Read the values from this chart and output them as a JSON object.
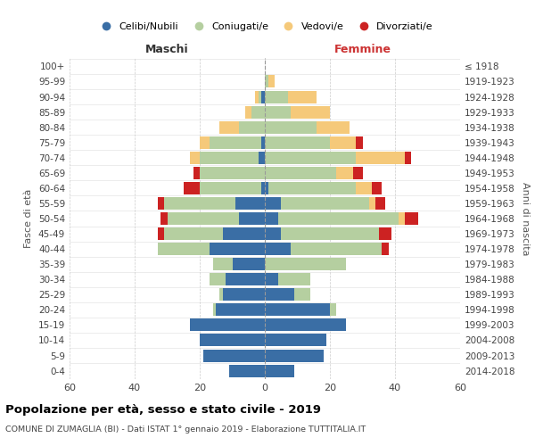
{
  "age_groups": [
    "0-4",
    "5-9",
    "10-14",
    "15-19",
    "20-24",
    "25-29",
    "30-34",
    "35-39",
    "40-44",
    "45-49",
    "50-54",
    "55-59",
    "60-64",
    "65-69",
    "70-74",
    "75-79",
    "80-84",
    "85-89",
    "90-94",
    "95-99",
    "100+"
  ],
  "birth_years": [
    "2014-2018",
    "2009-2013",
    "2004-2008",
    "1999-2003",
    "1994-1998",
    "1989-1993",
    "1984-1988",
    "1979-1983",
    "1974-1978",
    "1969-1973",
    "1964-1968",
    "1959-1963",
    "1954-1958",
    "1949-1953",
    "1944-1948",
    "1939-1943",
    "1934-1938",
    "1929-1933",
    "1924-1928",
    "1919-1923",
    "≤ 1918"
  ],
  "males": {
    "celibi": [
      11,
      19,
      20,
      23,
      15,
      13,
      12,
      10,
      17,
      13,
      8,
      9,
      1,
      0,
      2,
      1,
      0,
      0,
      1,
      0,
      0
    ],
    "coniugati": [
      0,
      0,
      0,
      0,
      1,
      1,
      5,
      6,
      16,
      18,
      22,
      22,
      19,
      20,
      18,
      16,
      8,
      4,
      1,
      0,
      0
    ],
    "vedovi": [
      0,
      0,
      0,
      0,
      0,
      0,
      0,
      0,
      0,
      0,
      0,
      0,
      0,
      0,
      3,
      3,
      6,
      2,
      1,
      0,
      0
    ],
    "divorziati": [
      0,
      0,
      0,
      0,
      0,
      0,
      0,
      0,
      0,
      2,
      2,
      2,
      5,
      2,
      0,
      0,
      0,
      0,
      0,
      0,
      0
    ]
  },
  "females": {
    "nubili": [
      9,
      18,
      19,
      25,
      20,
      9,
      4,
      0,
      8,
      5,
      4,
      5,
      1,
      0,
      0,
      0,
      0,
      0,
      0,
      0,
      0
    ],
    "coniugate": [
      0,
      0,
      0,
      0,
      2,
      5,
      10,
      25,
      28,
      30,
      37,
      27,
      27,
      22,
      28,
      20,
      16,
      8,
      7,
      1,
      0
    ],
    "vedove": [
      0,
      0,
      0,
      0,
      0,
      0,
      0,
      0,
      0,
      0,
      2,
      2,
      5,
      5,
      15,
      8,
      10,
      12,
      9,
      2,
      0
    ],
    "divorziate": [
      0,
      0,
      0,
      0,
      0,
      0,
      0,
      0,
      2,
      4,
      4,
      3,
      3,
      3,
      2,
      2,
      0,
      0,
      0,
      0,
      0
    ]
  },
  "colors": {
    "celibi": "#3a6ea5",
    "coniugati": "#b5cfa0",
    "vedovi": "#f5c97a",
    "divorziati": "#cc2222"
  },
  "title": "Popolazione per età, sesso e stato civile - 2019",
  "subtitle": "COMUNE DI ZUMAGLIA (BI) - Dati ISTAT 1° gennaio 2019 - Elaborazione TUTTITALIA.IT",
  "xlabel_left": "Maschi",
  "xlabel_right": "Femmine",
  "ylabel_left": "Fasce di età",
  "ylabel_right": "Anni di nascita",
  "xlim": 60,
  "legend_labels": [
    "Celibi/Nubili",
    "Coniugati/e",
    "Vedovi/e",
    "Divorziati/e"
  ]
}
